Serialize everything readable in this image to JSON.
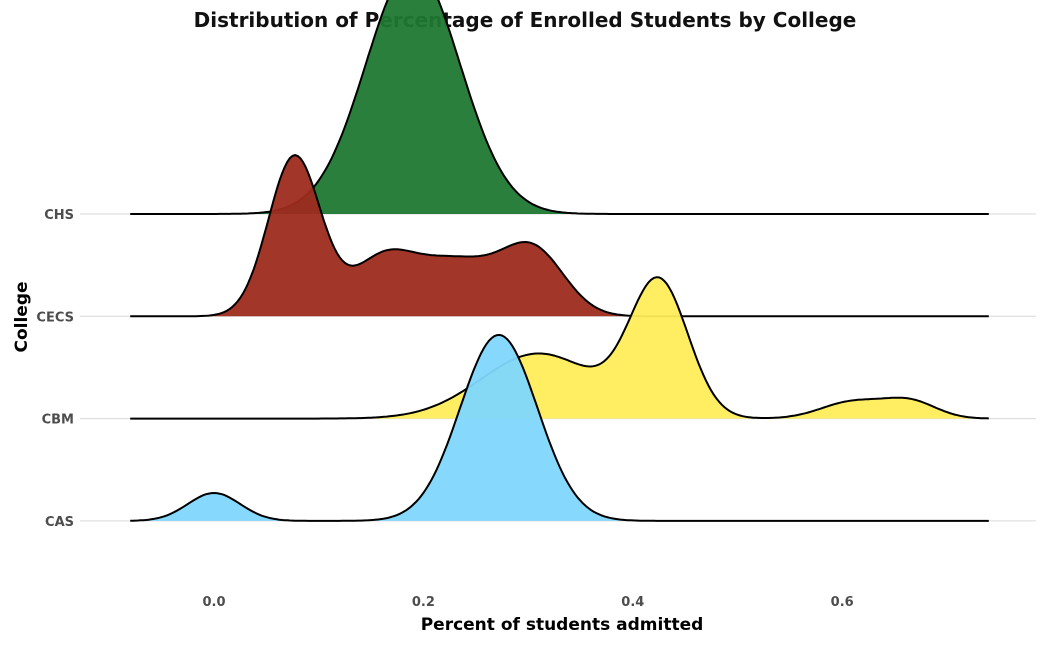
{
  "chart_data": {
    "type": "ridgeline",
    "title": "Distribution of Percentage of Enrolled Students by College",
    "xlabel": "Percent of students admitted",
    "ylabel": "College",
    "x_ticks": [
      0.0,
      0.2,
      0.4,
      0.6
    ],
    "x_tick_labels": [
      "0.0",
      "0.2",
      "0.4",
      "0.6"
    ],
    "xlim": [
      -0.08,
      0.74
    ],
    "grid": "horizontal",
    "legend": "none",
    "categories": [
      "CAS",
      "CBM",
      "CECS",
      "CHS"
    ],
    "series": [
      {
        "name": "CAS",
        "color": "#7fd7fd",
        "components": [
          {
            "mean": 0.0,
            "sd": 0.025,
            "height": 0.15
          },
          {
            "mean": 0.272,
            "sd": 0.037,
            "height": 1.0
          }
        ]
      },
      {
        "name": "CBM",
        "color": "#ffed59",
        "components": [
          {
            "mean": 0.31,
            "sd": 0.055,
            "height": 0.35
          },
          {
            "mean": 0.425,
            "sd": 0.028,
            "height": 0.72
          },
          {
            "mean": 0.61,
            "sd": 0.03,
            "height": 0.09
          },
          {
            "mean": 0.665,
            "sd": 0.025,
            "height": 0.09
          }
        ]
      },
      {
        "name": "CECS",
        "color": "#9c2b1e",
        "components": [
          {
            "mean": 0.077,
            "sd": 0.025,
            "height": 0.86
          },
          {
            "mean": 0.16,
            "sd": 0.03,
            "height": 0.28
          },
          {
            "mean": 0.23,
            "sd": 0.04,
            "height": 0.29
          },
          {
            "mean": 0.305,
            "sd": 0.03,
            "height": 0.34
          }
        ]
      },
      {
        "name": "CHS",
        "color": "#1e7830",
        "components": [
          {
            "mean": 0.19,
            "sd": 0.045,
            "height": 1.33
          }
        ]
      }
    ]
  }
}
